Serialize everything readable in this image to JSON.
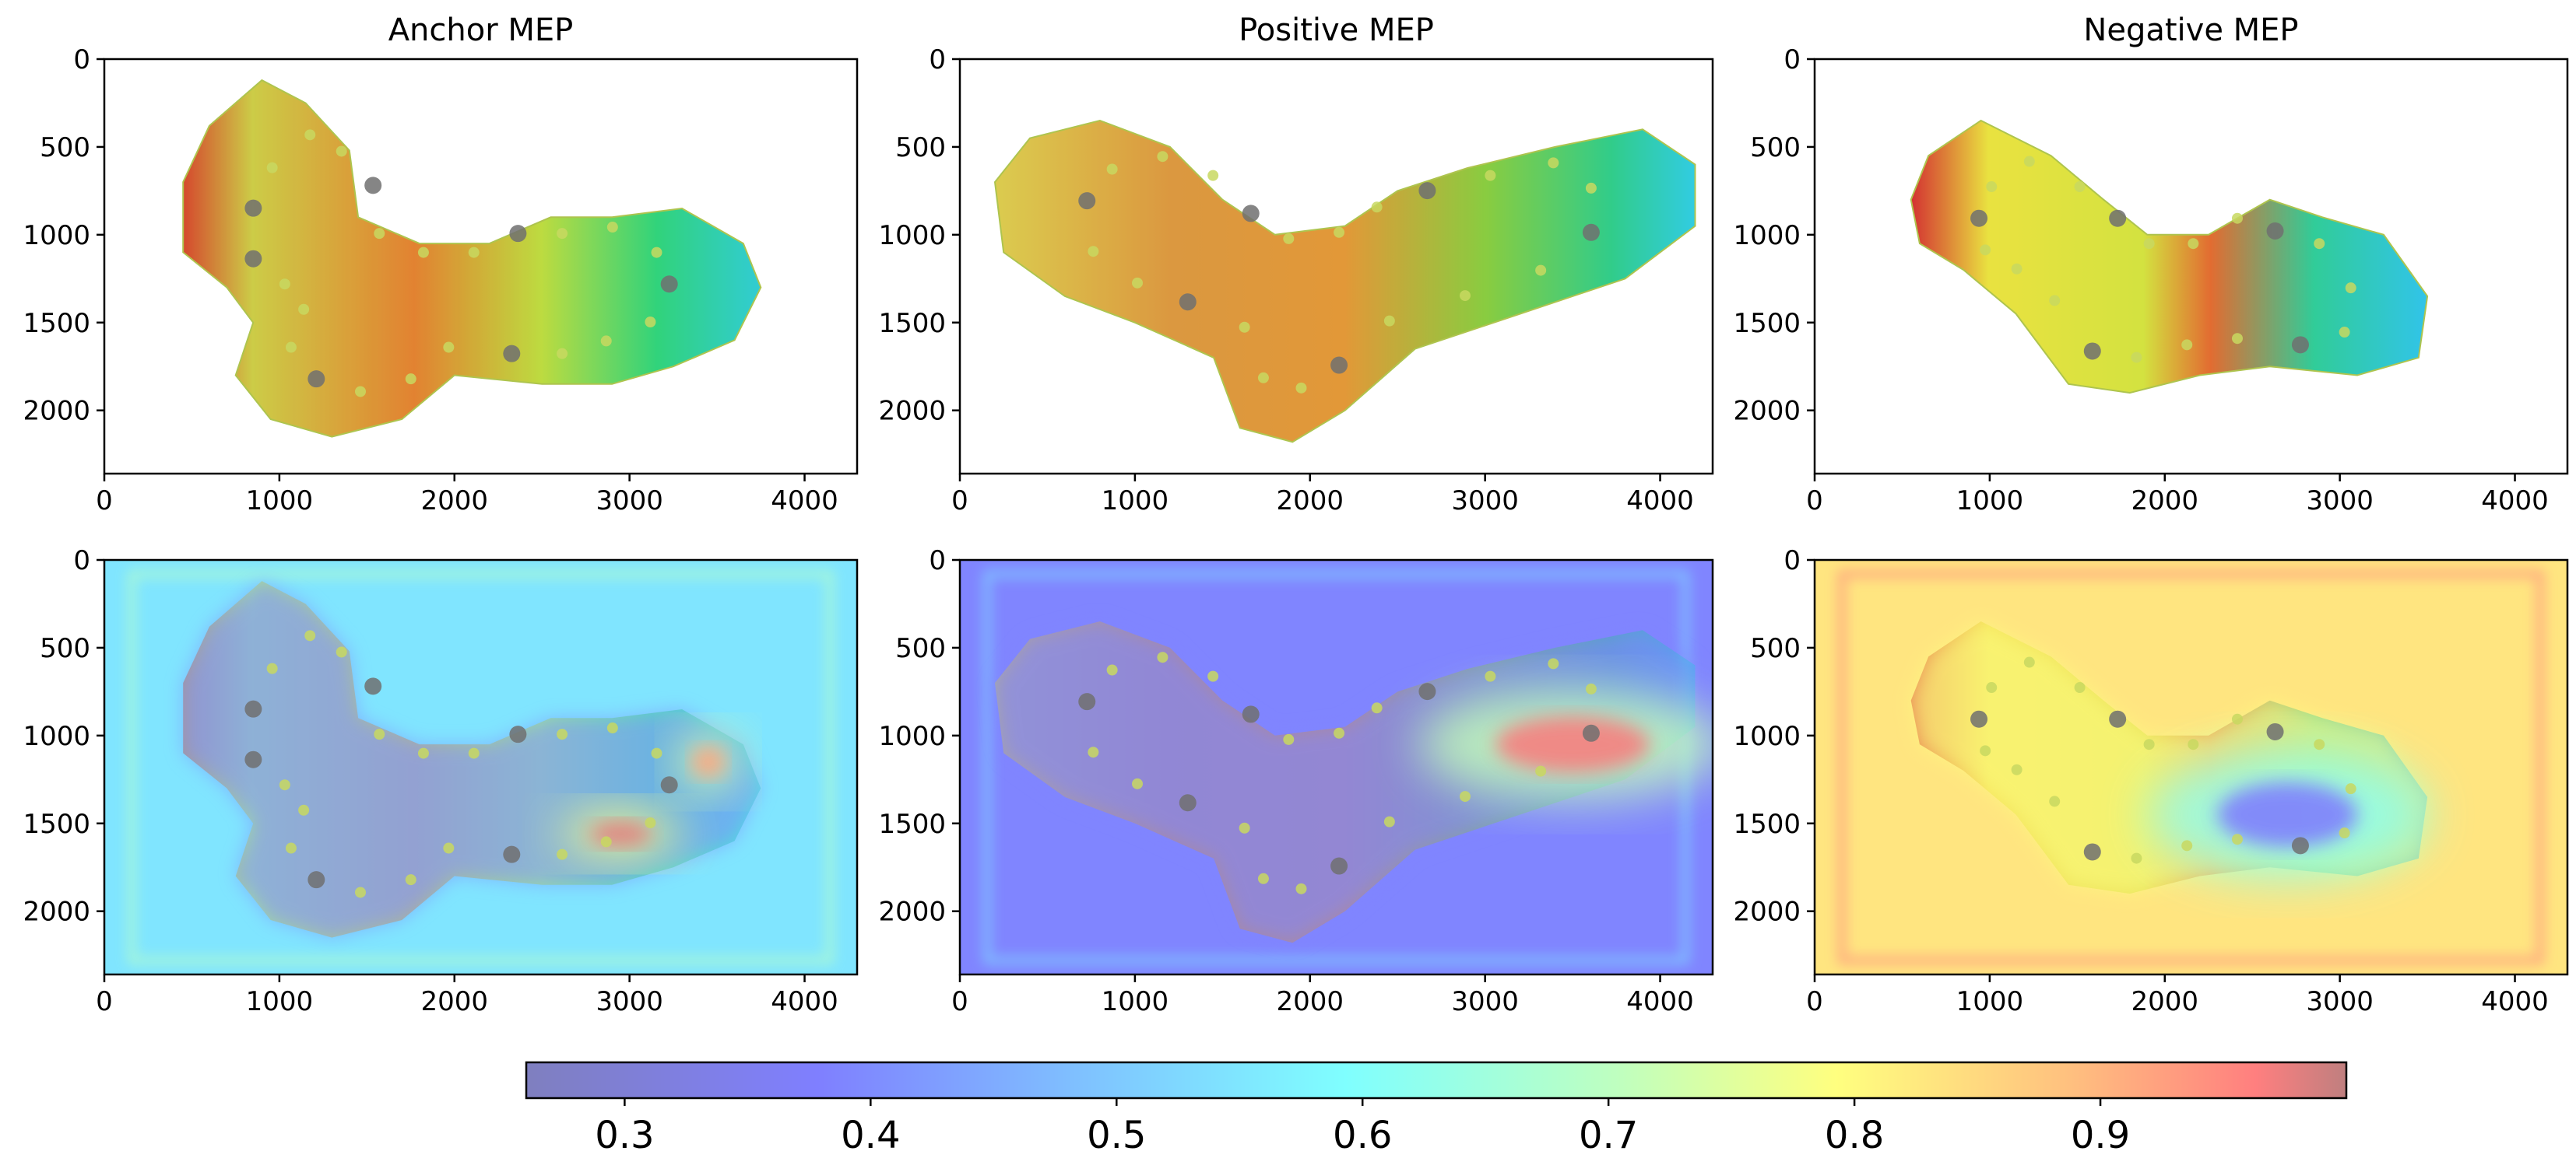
{
  "chart_data": {
    "type": "heatmap",
    "description": "Molecular electrostatic potential (MEP) images with attention heatmap overlays",
    "panels": [
      {
        "title": "Anchor MEP",
        "row": 0,
        "col": 0,
        "kind": "mep-image",
        "molecule": "anchor"
      },
      {
        "title": "Positive MEP",
        "row": 0,
        "col": 1,
        "kind": "mep-image",
        "molecule": "positive"
      },
      {
        "title": "Negative MEP",
        "row": 0,
        "col": 2,
        "kind": "mep-image",
        "molecule": "negative"
      },
      {
        "title": "",
        "row": 1,
        "col": 0,
        "kind": "heatmap-overlay",
        "molecule": "anchor",
        "background_value": 0.5,
        "hotspot_values": [
          0.95,
          0.85
        ]
      },
      {
        "title": "",
        "row": 1,
        "col": 1,
        "kind": "heatmap-overlay",
        "molecule": "positive",
        "background_value": 0.36,
        "hotspot_values": [
          0.92
        ]
      },
      {
        "title": "",
        "row": 1,
        "col": 2,
        "kind": "heatmap-overlay",
        "molecule": "negative",
        "background_value": 0.76,
        "hotspot_values": [
          0.35
        ]
      }
    ],
    "x_axis": {
      "range": [
        0,
        4300
      ],
      "ticks": [
        0,
        1000,
        2000,
        3000,
        4000
      ],
      "tick_labels": [
        "0",
        "1000",
        "2000",
        "3000",
        "4000"
      ]
    },
    "y_axis": {
      "range": [
        2360,
        0
      ],
      "ticks": [
        0,
        500,
        1000,
        1500,
        2000
      ],
      "tick_labels": [
        "0",
        "500",
        "1000",
        "1500",
        "2000"
      ],
      "inverted": true
    },
    "colorbar": {
      "orientation": "horizontal",
      "range": [
        0.26,
        1.0
      ],
      "ticks": [
        0.3,
        0.4,
        0.5,
        0.6,
        0.7,
        0.8,
        0.9
      ],
      "tick_labels": [
        "0.3",
        "0.4",
        "0.5",
        "0.6",
        "0.7",
        "0.8",
        "0.9"
      ],
      "colormap": "jet",
      "alpha": 0.5
    }
  }
}
